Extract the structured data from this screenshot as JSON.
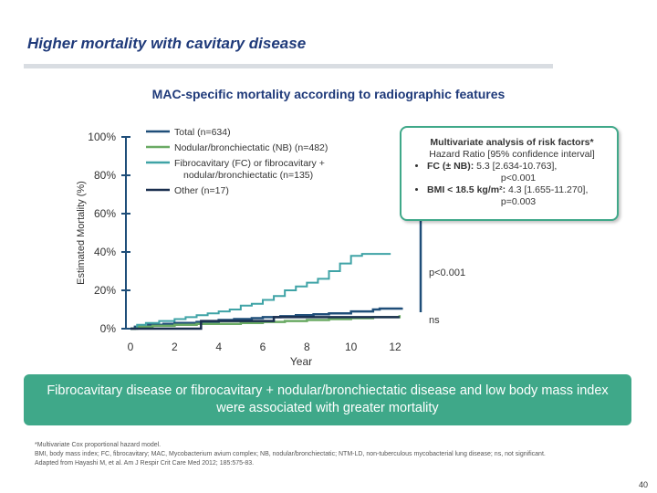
{
  "slide": {
    "title": "Higher mortality with cavitary disease",
    "subtitle": "MAC-specific mortality according to radiographic features",
    "banner": "Fibrocavitary disease or fibrocavitary + nodular/bronchiectatic disease and low body mass index were associated with greater mortality",
    "footnote_1": "*Multivariate Cox proportional hazard model.",
    "footnote_2": "BMI, body mass index; FC, fibrocavitary; MAC, Mycobacterium avium complex; NB, nodular/bronchiectatic; NTM-LD, non-tuberculous mycobacterial lung disease; ns, not significant.",
    "footnote_3": "Adapted from Hayashi M, et al. Am J Respir Crit Care Med 2012; 185:575-83.",
    "page_number": "40"
  },
  "multivariate": {
    "title": "Multivariate analysis of risk factors*",
    "subtitle": "Hazard Ratio [95% confidence interval]",
    "fc_label": "FC (± NB):",
    "fc_value": " 5.3 [2.634-10.763],",
    "fc_p": "p<0.001",
    "bmi_label": "BMI < 18.5 kg/m²:",
    "bmi_value": " 4.3 [1.655-11.270],",
    "bmi_p": "p=0.003"
  },
  "chart_data": {
    "type": "line",
    "ylabel": "Estimated Mortality (%)",
    "xlabel": "Year",
    "xlim": [
      0,
      12
    ],
    "ylim": [
      0,
      100
    ],
    "x_ticks": [
      "0",
      "2",
      "4",
      "6",
      "8",
      "10",
      "12"
    ],
    "y_ticks": [
      "0%",
      "20%",
      "40%",
      "60%",
      "80%",
      "100%"
    ],
    "annotations": [
      {
        "text": "p<0.001",
        "x": 12,
        "y": 26
      },
      {
        "text": "ns",
        "x": 12,
        "y": 4
      }
    ],
    "series": [
      {
        "name": "Total (n=634)",
        "color": "#1f4e79",
        "points": [
          [
            0,
            0
          ],
          [
            0.2,
            1
          ],
          [
            0.8,
            2
          ],
          [
            1.5,
            2.5
          ],
          [
            2,
            3
          ],
          [
            3,
            3.5
          ],
          [
            4,
            4.5
          ],
          [
            4.7,
            5
          ],
          [
            5.5,
            5.5
          ],
          [
            6,
            6
          ],
          [
            6.8,
            6.5
          ],
          [
            7.5,
            7
          ],
          [
            8.3,
            7.5
          ],
          [
            9,
            8
          ],
          [
            10,
            9
          ],
          [
            11,
            10
          ],
          [
            11.3,
            10.5
          ],
          [
            12.3,
            11
          ]
        ]
      },
      {
        "name": "Nodular/bronchiectatic (NB) (n=482)",
        "color": "#6aaa64",
        "points": [
          [
            0,
            0
          ],
          [
            0.3,
            1
          ],
          [
            1,
            1.5
          ],
          [
            2,
            2
          ],
          [
            3,
            2.5
          ],
          [
            4,
            2.5
          ],
          [
            5,
            3
          ],
          [
            6,
            3.5
          ],
          [
            7,
            4
          ],
          [
            7.5,
            4
          ],
          [
            8,
            4.5
          ],
          [
            9,
            5
          ],
          [
            10,
            5.5
          ],
          [
            11,
            6
          ],
          [
            12.2,
            7
          ]
        ]
      },
      {
        "name": "Fibrocavitary (FC) or fibrocavitary + nodular/bronchiectatic (n=135)",
        "color": "#3fa3a6",
        "points": [
          [
            0,
            0
          ],
          [
            0.3,
            2
          ],
          [
            0.7,
            3
          ],
          [
            1.3,
            4
          ],
          [
            2,
            5
          ],
          [
            2.5,
            6
          ],
          [
            3,
            7
          ],
          [
            3.5,
            8
          ],
          [
            4,
            9
          ],
          [
            4.5,
            10
          ],
          [
            5,
            12
          ],
          [
            5.5,
            13
          ],
          [
            6,
            15
          ],
          [
            6.5,
            17
          ],
          [
            7,
            20
          ],
          [
            7.5,
            22
          ],
          [
            8,
            24
          ],
          [
            8.5,
            26
          ],
          [
            9,
            30
          ],
          [
            9.5,
            34
          ],
          [
            10,
            38
          ],
          [
            10.5,
            39
          ],
          [
            11.8,
            39
          ]
        ]
      },
      {
        "name": "Other (n=17)",
        "color": "#1a2f4f",
        "points": [
          [
            0,
            0
          ],
          [
            3,
            0
          ],
          [
            3.2,
            4
          ],
          [
            6,
            4
          ],
          [
            6.5,
            6
          ],
          [
            12.2,
            6
          ]
        ]
      }
    ]
  }
}
